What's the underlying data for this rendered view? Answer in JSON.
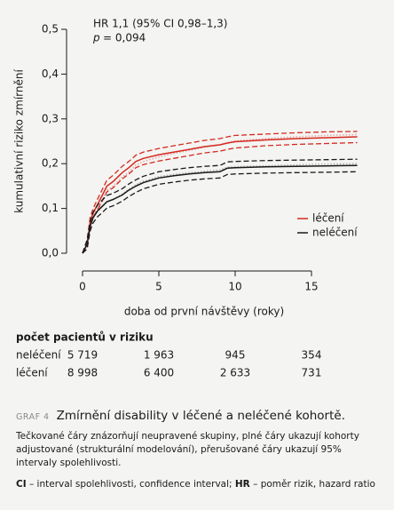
{
  "chart_data": {
    "type": "line",
    "annotations": [
      "HR 1,1 (95% CI 0,98–1,3)"
    ],
    "p_symbol": "p",
    "p_text": "= 0,094",
    "x_label": "doba od první návštěvy (roky)",
    "y_label": "kumulativní riziko zmírnění",
    "xlim": [
      0,
      18
    ],
    "xticks": [
      0,
      5,
      10,
      15
    ],
    "ylim": [
      0,
      0.5
    ],
    "yticks": [
      {
        "value": 0,
        "label": "0,0"
      },
      {
        "value": 0.1,
        "label": "0,1"
      },
      {
        "value": 0.2,
        "label": "0,2"
      },
      {
        "value": 0.3,
        "label": "0,3"
      },
      {
        "value": 0.4,
        "label": "0,4"
      },
      {
        "value": 0.5,
        "label": "0,5"
      }
    ],
    "x": [
      0,
      0.3,
      0.5,
      0.7,
      1,
      1.3,
      1.6,
      2,
      2.3,
      2.6,
      3,
      3.5,
      4,
      5,
      6,
      7,
      8,
      9,
      9.5,
      10,
      12,
      14,
      16,
      18
    ],
    "legend": "right",
    "series": [
      {
        "name": "léčení",
        "color": "#d42a20",
        "unadjusted_color": "#e3a9a5",
        "values": [
          0,
          0.02,
          0.07,
          0.09,
          0.11,
          0.13,
          0.15,
          0.16,
          0.17,
          0.18,
          0.19,
          0.205,
          0.212,
          0.22,
          0.226,
          0.232,
          0.238,
          0.242,
          0.246,
          0.249,
          0.253,
          0.256,
          0.258,
          0.26
        ],
        "upper": [
          0,
          0.03,
          0.08,
          0.1,
          0.122,
          0.143,
          0.163,
          0.174,
          0.184,
          0.194,
          0.204,
          0.219,
          0.226,
          0.234,
          0.24,
          0.246,
          0.252,
          0.256,
          0.26,
          0.263,
          0.266,
          0.269,
          0.271,
          0.272
        ],
        "lower": [
          0,
          0.01,
          0.06,
          0.08,
          0.098,
          0.117,
          0.137,
          0.146,
          0.156,
          0.166,
          0.176,
          0.191,
          0.198,
          0.206,
          0.212,
          0.218,
          0.224,
          0.228,
          0.232,
          0.235,
          0.24,
          0.243,
          0.245,
          0.247
        ],
        "unadjusted": [
          0,
          0.02,
          0.065,
          0.085,
          0.1,
          0.12,
          0.14,
          0.15,
          0.16,
          0.17,
          0.18,
          0.197,
          0.205,
          0.215,
          0.223,
          0.23,
          0.237,
          0.242,
          0.247,
          0.251,
          0.256,
          0.26,
          0.263,
          0.265
        ]
      },
      {
        "name": "neléčení",
        "color": "#1a1a1a",
        "unadjusted_color": "#b0b0b0",
        "values": [
          0,
          0.02,
          0.06,
          0.08,
          0.095,
          0.105,
          0.115,
          0.12,
          0.125,
          0.13,
          0.14,
          0.15,
          0.158,
          0.168,
          0.173,
          0.177,
          0.18,
          0.182,
          0.19,
          0.191,
          0.193,
          0.194,
          0.195,
          0.196
        ],
        "upper": [
          0,
          0.03,
          0.07,
          0.092,
          0.108,
          0.119,
          0.129,
          0.134,
          0.139,
          0.144,
          0.154,
          0.164,
          0.172,
          0.182,
          0.187,
          0.191,
          0.194,
          0.196,
          0.204,
          0.205,
          0.207,
          0.208,
          0.209,
          0.21
        ],
        "lower": [
          0,
          0.01,
          0.05,
          0.068,
          0.082,
          0.091,
          0.101,
          0.106,
          0.111,
          0.116,
          0.126,
          0.136,
          0.144,
          0.154,
          0.159,
          0.163,
          0.166,
          0.168,
          0.176,
          0.177,
          0.179,
          0.18,
          0.181,
          0.182
        ],
        "unadjusted": [
          0,
          0.02,
          0.058,
          0.078,
          0.093,
          0.104,
          0.114,
          0.12,
          0.126,
          0.132,
          0.142,
          0.153,
          0.161,
          0.171,
          0.176,
          0.18,
          0.183,
          0.186,
          0.192,
          0.193,
          0.195,
          0.197,
          0.199,
          0.2
        ]
      }
    ]
  },
  "risk_table": {
    "title": "počet pacientů v riziku",
    "rows": [
      {
        "label": "neléčení",
        "color": "#1a1a1a",
        "cells": [
          "5 719",
          "1 963",
          "945",
          "354"
        ]
      },
      {
        "label": "léčení",
        "color": "#d42a20",
        "cells": [
          "8 998",
          "6 400",
          "2 633",
          "731"
        ]
      }
    ]
  },
  "caption": {
    "label": "GRAF 4",
    "title": "Zmírnění disability v léčené a neléčené kohortě.",
    "description": "Tečkované čáry znázorňují neupravené skupiny, plné čáry ukazují kohorty adjustované (strukturální modelování), přerušované čáry ukazují 95% intervaly spolehlivosti.",
    "footnote": [
      {
        "abbr": "CI",
        "text": " – interval spolehlivosti, confidence interval; "
      },
      {
        "abbr": "HR",
        "text": " – poměr rizik, hazard ratio"
      }
    ]
  }
}
